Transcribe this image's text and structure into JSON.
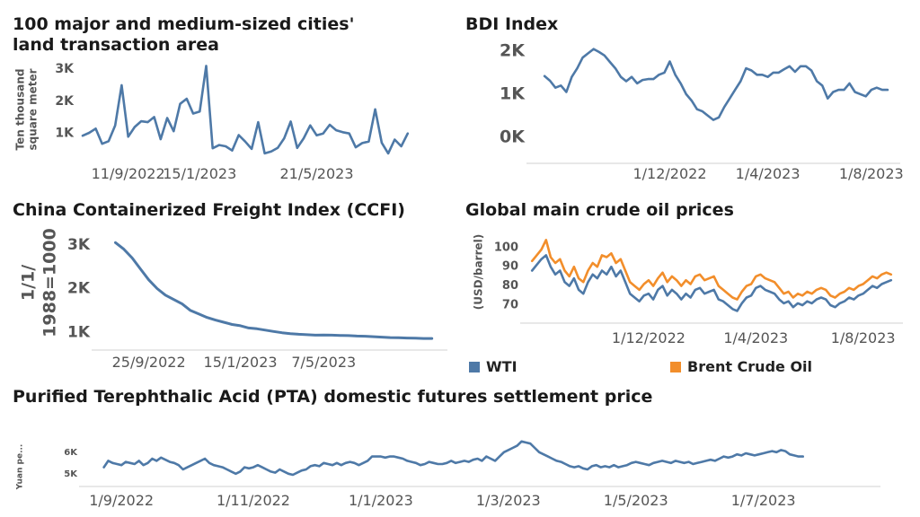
{
  "colors": {
    "series_blue": "#4E79A7",
    "series_orange": "#F28E2B",
    "axis": "#888888"
  },
  "chart_data": [
    {
      "id": "land",
      "type": "line",
      "title": "100 major and medium-sized cities' land transaction area",
      "ylabel_lines": [
        "Ten thousand",
        "square meter"
      ],
      "yticks": [
        {
          "value": 1000,
          "label": "1K"
        },
        {
          "value": 2000,
          "label": "2K"
        },
        {
          "value": 3000,
          "label": "3K"
        }
      ],
      "xticks": [
        {
          "x": 7,
          "label": "11/9/2022"
        },
        {
          "x": 18,
          "label": "15/1/2023"
        },
        {
          "x": 36,
          "label": "21/5/2023"
        }
      ],
      "xlim": [
        0,
        55
      ],
      "ylim": [
        350,
        3250
      ],
      "series": [
        {
          "values": [
            930,
            1020,
            1150,
            680,
            760,
            1250,
            2500,
            900,
            1200,
            1380,
            1350,
            1510,
            820,
            1480,
            1070,
            1920,
            2080,
            1620,
            1680,
            3100,
            540,
            640,
            600,
            470,
            950,
            750,
            520,
            1350,
            380,
            440,
            550,
            850,
            1370,
            550,
            850,
            1250,
            940,
            1000,
            1270,
            1100,
            1040,
            1000,
            570,
            700,
            750,
            1750,
            710,
            380,
            810,
            600,
            1000
          ]
        }
      ]
    },
    {
      "id": "bdi",
      "type": "line",
      "title": "BDI Index",
      "yticks": [
        {
          "value": 0,
          "label": "0K"
        },
        {
          "value": 1000,
          "label": "1K"
        },
        {
          "value": 2000,
          "label": "2K"
        }
      ],
      "xticks": [
        {
          "x": 23,
          "label": "1/12/2022"
        },
        {
          "x": 41,
          "label": "1/4/2023"
        },
        {
          "x": 60,
          "label": "1/8/2023"
        }
      ],
      "xlim": [
        -2,
        64
      ],
      "ylim": [
        -150,
        2250
      ],
      "series": [
        {
          "values": [
            1420,
            1310,
            1150,
            1200,
            1050,
            1400,
            1600,
            1850,
            1950,
            2050,
            1980,
            1900,
            1750,
            1600,
            1400,
            1300,
            1400,
            1250,
            1330,
            1350,
            1350,
            1450,
            1500,
            1760,
            1450,
            1250,
            1000,
            850,
            650,
            600,
            500,
            400,
            460,
            700,
            900,
            1100,
            1300,
            1600,
            1550,
            1450,
            1450,
            1400,
            1500,
            1500,
            1580,
            1650,
            1520,
            1650,
            1650,
            1550,
            1300,
            1200,
            900,
            1050,
            1100,
            1100,
            1250,
            1050,
            1000,
            950,
            1100,
            1150,
            1100,
            1100
          ]
        }
      ]
    },
    {
      "id": "ccfi",
      "type": "line",
      "title": "China Containerized Freight Index (CCFI)",
      "ylabel_lines": [
        "1/1/",
        "1988=1000"
      ],
      "yticks": [
        {
          "value": 1000,
          "label": "1K"
        },
        {
          "value": 2000,
          "label": "2K"
        },
        {
          "value": 3000,
          "label": "3K"
        }
      ],
      "xticks": [
        {
          "x": 4,
          "label": "25/9/2022"
        },
        {
          "x": 15,
          "label": "15/1/2023"
        },
        {
          "x": 25,
          "label": "7/5/2023"
        }
      ],
      "xlim": [
        -2,
        39
      ],
      "ylim": [
        800,
        3200
      ],
      "series": [
        {
          "values": [
            3050,
            2900,
            2700,
            2450,
            2200,
            2000,
            1850,
            1750,
            1650,
            1500,
            1420,
            1340,
            1280,
            1230,
            1180,
            1150,
            1100,
            1080,
            1050,
            1020,
            990,
            970,
            955,
            945,
            935,
            940,
            935,
            930,
            925,
            915,
            910,
            900,
            890,
            880,
            875,
            870,
            865,
            860,
            860
          ]
        }
      ]
    },
    {
      "id": "oil",
      "type": "line",
      "title": "Global main crude oil prices",
      "ylabel": "(USD/barrel)",
      "yticks": [
        {
          "value": 70,
          "label": "70"
        },
        {
          "value": 80,
          "label": "80"
        },
        {
          "value": 90,
          "label": "90"
        },
        {
          "value": 100,
          "label": "100"
        }
      ],
      "xticks": [
        {
          "x": 25,
          "label": "1/12/2022"
        },
        {
          "x": 48,
          "label": "1/4/2023"
        },
        {
          "x": 71,
          "label": "1/8/2023"
        }
      ],
      "xlim": [
        -1,
        78
      ],
      "ylim": [
        63,
        106
      ],
      "series": [
        {
          "name": "WTI",
          "values": [
            88,
            91,
            94,
            96,
            90,
            86,
            88,
            82,
            80,
            84,
            78,
            76,
            82,
            86,
            84,
            88,
            86,
            90,
            85,
            88,
            82,
            76,
            74,
            72,
            75,
            76,
            73,
            78,
            80,
            75,
            78,
            76,
            73,
            76,
            74,
            78,
            79,
            76,
            77,
            78,
            73,
            72,
            70,
            68,
            67,
            71,
            74,
            75,
            79,
            80,
            78,
            77,
            76,
            73,
            71,
            72,
            69,
            71,
            70,
            72,
            71,
            73,
            74,
            73,
            70,
            69,
            71,
            72,
            74,
            73,
            75,
            76,
            78,
            80,
            79,
            81,
            82,
            83
          ]
        },
        {
          "name": "Brent Crude Oil",
          "values": [
            93,
            96,
            99,
            104,
            95,
            92,
            94,
            88,
            85,
            90,
            84,
            82,
            88,
            92,
            90,
            96,
            95,
            97,
            92,
            94,
            88,
            82,
            80,
            78,
            81,
            83,
            80,
            84,
            87,
            82,
            85,
            83,
            80,
            83,
            81,
            85,
            86,
            83,
            84,
            85,
            80,
            78,
            76,
            74,
            73,
            77,
            80,
            81,
            85,
            86,
            84,
            83,
            82,
            79,
            76,
            77,
            74,
            76,
            75,
            77,
            76,
            78,
            79,
            78,
            75,
            74,
            76,
            77,
            79,
            78,
            80,
            81,
            83,
            85,
            84,
            86,
            87,
            86
          ]
        }
      ]
    },
    {
      "id": "pta",
      "type": "line",
      "title": "Purified Terephthalic Acid (PTA) domestic futures settlement price",
      "ylabel": "Yuan pe...",
      "yticks": [
        {
          "value": 5000,
          "label": "5K"
        },
        {
          "value": 6000,
          "label": "6K"
        }
      ],
      "xticks": [
        {
          "x": 4,
          "label": "1/9/2022"
        },
        {
          "x": 34,
          "label": "1/11/2022"
        },
        {
          "x": 63,
          "label": "1/1/2023"
        },
        {
          "x": 92,
          "label": "1/3/2023"
        },
        {
          "x": 121,
          "label": "1/5/2023"
        },
        {
          "x": 150,
          "label": "1/7/2023"
        }
      ],
      "xlim": [
        -4,
        175
      ],
      "ylim": [
        4700,
        6700
      ],
      "series": [
        {
          "values": [
            5300,
            5600,
            5500,
            5450,
            5400,
            5550,
            5500,
            5450,
            5600,
            5400,
            5500,
            5700,
            5600,
            5750,
            5650,
            5550,
            5500,
            5400,
            5200,
            5300,
            5400,
            5500,
            5600,
            5700,
            5500,
            5400,
            5350,
            5300,
            5200,
            5100,
            5000,
            5100,
            5300,
            5250,
            5300,
            5400,
            5300,
            5200,
            5100,
            5050,
            5200,
            5100,
            5000,
            4950,
            5050,
            5150,
            5200,
            5350,
            5400,
            5350,
            5500,
            5450,
            5400,
            5500,
            5400,
            5500,
            5550,
            5500,
            5400,
            5500,
            5600,
            5800,
            5800,
            5800,
            5750,
            5800,
            5800,
            5750,
            5700,
            5600,
            5550,
            5500,
            5400,
            5450,
            5550,
            5500,
            5450,
            5450,
            5500,
            5600,
            5500,
            5550,
            5600,
            5550,
            5650,
            5700,
            5600,
            5800,
            5700,
            5600,
            5800,
            6000,
            6100,
            6200,
            6300,
            6500,
            6450,
            6400,
            6200,
            6000,
            5900,
            5800,
            5700,
            5600,
            5550,
            5450,
            5350,
            5300,
            5350,
            5250,
            5200,
            5350,
            5400,
            5300,
            5350,
            5300,
            5400,
            5300,
            5350,
            5400,
            5500,
            5550,
            5500,
            5450,
            5400,
            5500,
            5550,
            5600,
            5550,
            5500,
            5600,
            5550,
            5500,
            5550,
            5450,
            5500,
            5550,
            5600,
            5650,
            5600,
            5700,
            5800,
            5750,
            5800,
            5900,
            5850,
            5950,
            5900,
            5850,
            5900,
            5950,
            6000,
            6050,
            6000,
            6100,
            6050,
            5900,
            5850,
            5800,
            5800
          ]
        }
      ]
    }
  ]
}
